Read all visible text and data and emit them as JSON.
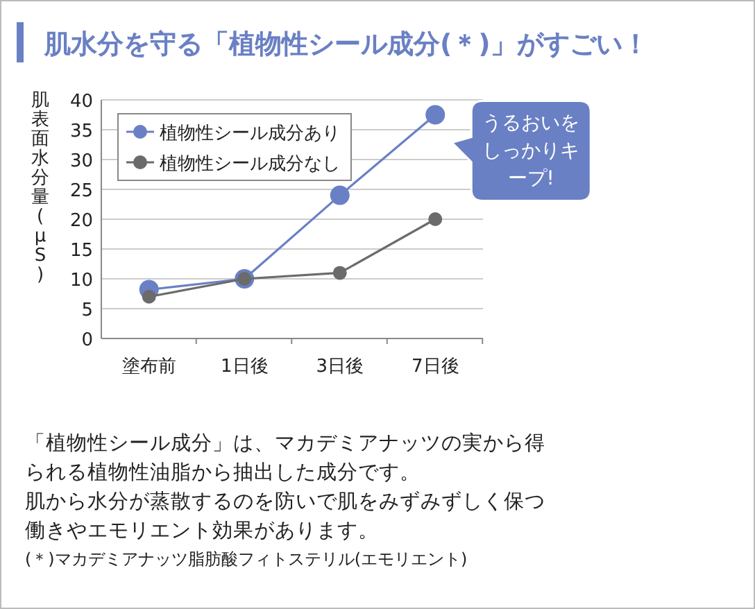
{
  "chart_data": {
    "type": "line",
    "title": "肌水分を守る「植物性シール成分(＊)」がすごい！",
    "ylabel": "肌表面水分量(μS)",
    "categories": [
      "塗布前",
      "1日後",
      "3日後",
      "7日後"
    ],
    "series": [
      {
        "name": "植物性シール成分あり",
        "color": "#6a80c4",
        "values": [
          8.2,
          10,
          24,
          37.5
        ]
      },
      {
        "name": "植物性シール成分なし",
        "color": "#6b6b6b",
        "values": [
          7,
          10,
          11,
          20
        ]
      }
    ],
    "ylim": [
      0,
      40
    ],
    "yticks": [
      0,
      5,
      10,
      15,
      20,
      25,
      30,
      35,
      40
    ],
    "grid": "y",
    "legend": "top left",
    "marker": "circle",
    "line_style": "solid",
    "annotations": [
      {
        "text": "うるおいをしっかりキープ!",
        "x": "7日後",
        "y": 37.5
      },
      "「植物性シール成分」は、マカデミアナッツの実から得",
      "られる植物性油脂から抽出した成分です。",
      "肌から水分が蒸散するのを防いで肌をみずみずしく保つ",
      "働きやエモリエント効果があります。",
      "(＊)マカデミアナッツ脂肪酸フィトステリル(エモリエント)"
    ]
  }
}
